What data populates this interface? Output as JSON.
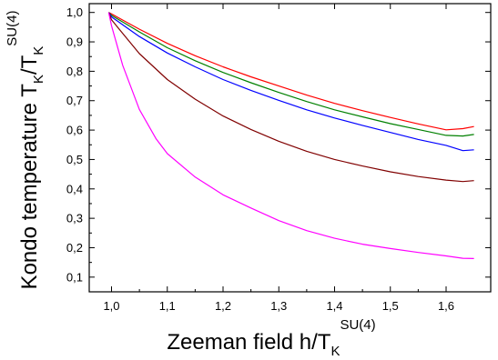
{
  "chart_data": {
    "type": "line",
    "xlabel": {
      "main": "Zeeman field h/T",
      "sub": "K",
      "sup": "SU(4)"
    },
    "ylabel": {
      "main": "Kondo temperature T",
      "sub1": "K",
      "mid": "/T",
      "sub2": "K",
      "sup": "SU(4)"
    },
    "xlim": [
      0.96,
      1.68
    ],
    "ylim": [
      0.05,
      1.03
    ],
    "xticks": [
      1.0,
      1.1,
      1.2,
      1.3,
      1.4,
      1.5,
      1.6
    ],
    "xtick_labels": [
      "1,0",
      "1,1",
      "1,2",
      "1,3",
      "1,4",
      "1,5",
      "1,6"
    ],
    "yticks": [
      0.1,
      0.2,
      0.3,
      0.4,
      0.5,
      0.6,
      0.7,
      0.8,
      0.9,
      1.0
    ],
    "ytick_labels": [
      "0,1",
      "0,2",
      "0,3",
      "0,4",
      "0,5",
      "0,6",
      "0,7",
      "0,8",
      "0,9",
      "1,0"
    ],
    "grid": false,
    "legend": "none",
    "series": [
      {
        "color": "#ff0000",
        "x": [
          0.995,
          1.0,
          1.05,
          1.1,
          1.15,
          1.2,
          1.25,
          1.3,
          1.35,
          1.4,
          1.45,
          1.5,
          1.55,
          1.6,
          1.63,
          1.65
        ],
        "y": [
          1.0,
          0.995,
          0.943,
          0.895,
          0.853,
          0.815,
          0.781,
          0.75,
          0.719,
          0.691,
          0.666,
          0.643,
          0.621,
          0.601,
          0.605,
          0.612
        ]
      },
      {
        "color": "#008000",
        "x": [
          0.995,
          1.0,
          1.05,
          1.1,
          1.15,
          1.2,
          1.25,
          1.3,
          1.35,
          1.4,
          1.45,
          1.5,
          1.55,
          1.6,
          1.63,
          1.65
        ],
        "y": [
          1.0,
          0.99,
          0.934,
          0.88,
          0.836,
          0.796,
          0.761,
          0.728,
          0.697,
          0.669,
          0.645,
          0.622,
          0.602,
          0.582,
          0.58,
          0.585
        ]
      },
      {
        "color": "#0000ff",
        "x": [
          0.995,
          1.0,
          1.05,
          1.1,
          1.15,
          1.2,
          1.25,
          1.3,
          1.35,
          1.4,
          1.45,
          1.5,
          1.55,
          1.6,
          1.63,
          1.65
        ],
        "y": [
          1.0,
          0.985,
          0.918,
          0.862,
          0.815,
          0.772,
          0.735,
          0.701,
          0.669,
          0.641,
          0.616,
          0.592,
          0.568,
          0.548,
          0.53,
          0.533
        ]
      },
      {
        "color": "#800000",
        "x": [
          0.995,
          1.0,
          1.05,
          1.1,
          1.15,
          1.2,
          1.25,
          1.3,
          1.35,
          1.4,
          1.45,
          1.5,
          1.55,
          1.6,
          1.63,
          1.65
        ],
        "y": [
          1.0,
          0.975,
          0.86,
          0.772,
          0.705,
          0.648,
          0.602,
          0.562,
          0.528,
          0.5,
          0.478,
          0.458,
          0.442,
          0.43,
          0.425,
          0.428
        ]
      },
      {
        "color": "#ff00ff",
        "x": [
          0.995,
          1.0,
          1.02,
          1.05,
          1.08,
          1.1,
          1.15,
          1.2,
          1.25,
          1.3,
          1.35,
          1.4,
          1.45,
          1.5,
          1.55,
          1.6,
          1.63,
          1.65
        ],
        "y": [
          1.0,
          0.955,
          0.82,
          0.67,
          0.57,
          0.52,
          0.44,
          0.38,
          0.335,
          0.292,
          0.258,
          0.232,
          0.212,
          0.197,
          0.184,
          0.172,
          0.164,
          0.163
        ]
      }
    ]
  }
}
